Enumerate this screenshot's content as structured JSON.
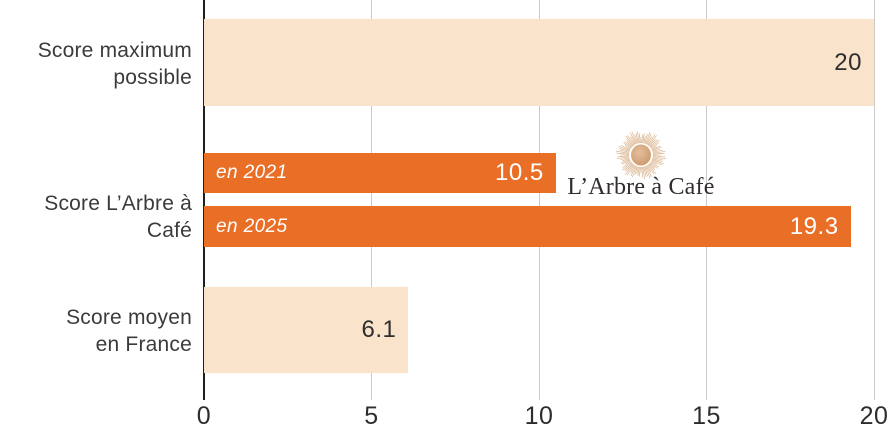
{
  "chart_data": {
    "type": "bar",
    "orientation": "horizontal",
    "title": "",
    "xlabel": "",
    "ylabel": "",
    "xlim": [
      0,
      20
    ],
    "xticks": [
      "0",
      "5",
      "10",
      "15",
      "20"
    ],
    "xtick_values": [
      0,
      5,
      10,
      15,
      20
    ],
    "grid": "vertical",
    "legend": "none",
    "categories": [
      "Score maximum\npossible",
      "Score L’Arbre à Café",
      "Score moyen\nen France"
    ],
    "bars": [
      {
        "name": "score-maximum-possible",
        "category_index": 0,
        "series": "",
        "value": 20,
        "value_label": "20",
        "bar_color": "#fae3cb",
        "value_label_color": "#2e2e2e",
        "inner_label": ""
      },
      {
        "name": "en-2021",
        "category_index": 1,
        "series": "en 2021",
        "value": 10.5,
        "value_label": "10.5",
        "bar_color": "#e96f27",
        "value_label_color": "#ffffff",
        "inner_label": "en 2021"
      },
      {
        "name": "en-2025",
        "category_index": 1,
        "series": "en 2025",
        "value": 19.3,
        "value_label": "19.3",
        "bar_color": "#e96f27",
        "value_label_color": "#ffffff",
        "inner_label": "en 2025"
      },
      {
        "name": "score-moyen-en-france",
        "category_index": 2,
        "series": "",
        "value": 6.1,
        "value_label": "6.1",
        "bar_color": "#fae3cb",
        "value_label_color": "#2e2e2e",
        "inner_label": ""
      }
    ]
  },
  "logo": {
    "text": "L’Arbre à Café",
    "icon": "sunburst-icon",
    "icon_center_color": "#d2a076",
    "icon_ray_color": "#d8ad84",
    "text_color": "#332c2d"
  },
  "colors": {
    "orange": "#e96f27",
    "peach": "#fae3cb",
    "grid": "#cbcbcb",
    "axis": "#1f1f1f",
    "category_text": "#3b3b3b",
    "tick_text": "#2d2d2d",
    "inner_label_text": "#ffffff"
  }
}
